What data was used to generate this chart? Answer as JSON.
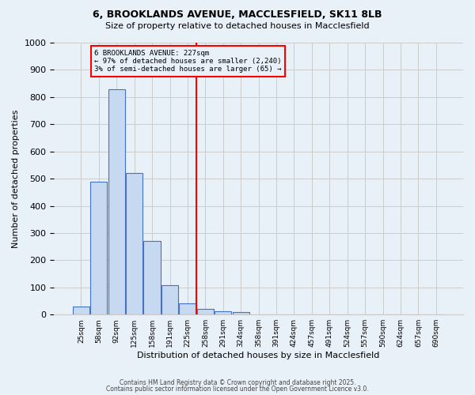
{
  "title1": "6, BROOKLANDS AVENUE, MACCLESFIELD, SK11 8LB",
  "title2": "Size of property relative to detached houses in Macclesfield",
  "xlabel": "Distribution of detached houses by size in Macclesfield",
  "ylabel": "Number of detached properties",
  "bar_values": [
    30,
    490,
    830,
    520,
    270,
    108,
    40,
    20,
    12,
    10,
    0,
    0,
    0,
    0,
    0,
    0,
    0,
    0,
    0,
    0,
    0
  ],
  "categories": [
    "25sqm",
    "58sqm",
    "92sqm",
    "125sqm",
    "158sqm",
    "191sqm",
    "225sqm",
    "258sqm",
    "291sqm",
    "324sqm",
    "358sqm",
    "391sqm",
    "424sqm",
    "457sqm",
    "491sqm",
    "524sqm",
    "557sqm",
    "590sqm",
    "624sqm",
    "657sqm",
    "690sqm"
  ],
  "bar_color": "#c6d9f0",
  "bar_edge_color": "#4472c4",
  "grid_color": "#cccccc",
  "bg_color": "#e8f0f8",
  "red_line_x": 6.5,
  "annotation_line1": "6 BROOKLANDS AVENUE: 227sqm",
  "annotation_line2": "← 97% of detached houses are smaller (2,240)",
  "annotation_line3": "3% of semi-detached houses are larger (65) →",
  "footer1": "Contains HM Land Registry data © Crown copyright and database right 2025.",
  "footer2": "Contains public sector information licensed under the Open Government Licence v3.0.",
  "ylim": [
    0,
    1000
  ],
  "yticks": [
    0,
    100,
    200,
    300,
    400,
    500,
    600,
    700,
    800,
    900,
    1000
  ]
}
